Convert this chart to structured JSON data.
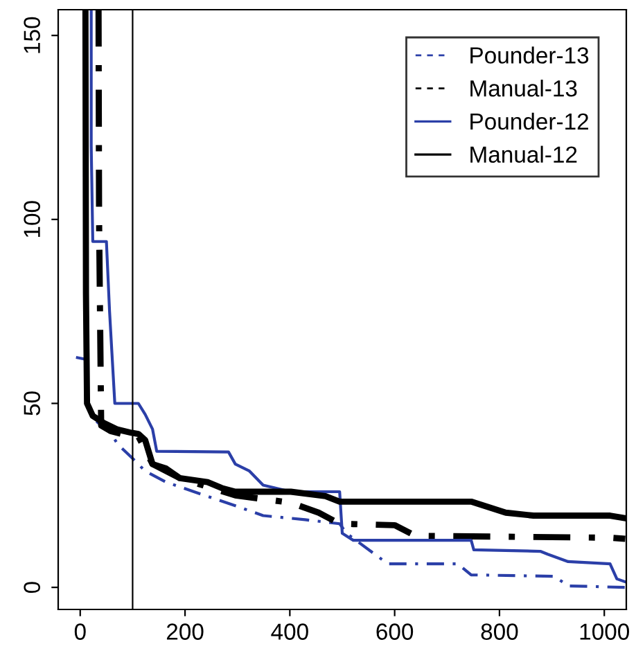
{
  "chart_data": {
    "type": "line",
    "xlim": [
      -42,
      1042
    ],
    "ylim": [
      -6,
      157
    ],
    "xticks": [
      0,
      200,
      400,
      600,
      800,
      1000
    ],
    "yticks": [
      0,
      50,
      100,
      150
    ],
    "grid": false,
    "legend": "top right",
    "marker": "none",
    "ref_lines": [
      {
        "axis": "x",
        "value": 100,
        "color": "#000000"
      }
    ],
    "series": [
      {
        "name": "Pounder-13",
        "color": "#2b3fa8",
        "line_style": "dashed",
        "x": [
          -8,
          10,
          13,
          32,
          58,
          71,
          98,
          124,
          164,
          217,
          296,
          349,
          429,
          495,
          508,
          587,
          720,
          746,
          905,
          931,
          1040
        ],
        "values": [
          62.5,
          62,
          48.5,
          45,
          42,
          39,
          35.3,
          31.6,
          28.6,
          26,
          22.2,
          19.5,
          18.4,
          17.3,
          14.7,
          6.4,
          6.4,
          3.4,
          3,
          0.4,
          0
        ]
      },
      {
        "name": "Manual-13",
        "color": "#000000",
        "line_style": "dashed",
        "x": [
          35,
          36,
          40,
          58,
          85,
          111,
          138,
          190,
          296,
          402,
          455,
          495,
          600,
          640,
          1011,
          1040
        ],
        "values": [
          157,
          100,
          44,
          42.5,
          41.5,
          41,
          33.5,
          29.7,
          25,
          23,
          20.3,
          17.3,
          16.9,
          14,
          13.5,
          13.2
        ]
      },
      {
        "name": "Pounder-12",
        "color": "#2b3fa8",
        "line_style": "solid",
        "x": [
          21,
          21,
          24,
          50,
          56,
          66,
          111,
          124,
          138,
          146,
          283,
          296,
          323,
          349,
          402,
          495,
          500,
          521,
          746,
          751,
          878,
          892,
          931,
          1011,
          1024,
          1040
        ],
        "values": [
          157,
          120,
          94,
          94,
          75,
          50,
          50,
          47,
          43,
          37,
          36.8,
          33.5,
          31.6,
          27.8,
          26,
          26,
          14.7,
          12.8,
          12.8,
          10.2,
          9.8,
          9,
          7,
          6.4,
          2.3,
          1.5
        ]
      },
      {
        "name": "Manual-12",
        "color": "#000000",
        "line_style": "solid",
        "x": [
          10,
          11,
          13,
          24,
          45,
          71,
          98,
          111,
          124,
          138,
          164,
          190,
          243,
          270,
          296,
          402,
          468,
          495,
          746,
          812,
          865,
          1011,
          1040
        ],
        "values": [
          157,
          80,
          50,
          46.6,
          44.7,
          42.9,
          42,
          41.7,
          40,
          33.5,
          32.3,
          29.7,
          28.6,
          27,
          26,
          26,
          24.8,
          23.3,
          23.3,
          20.3,
          19.5,
          19.5,
          18.8
        ]
      }
    ]
  }
}
